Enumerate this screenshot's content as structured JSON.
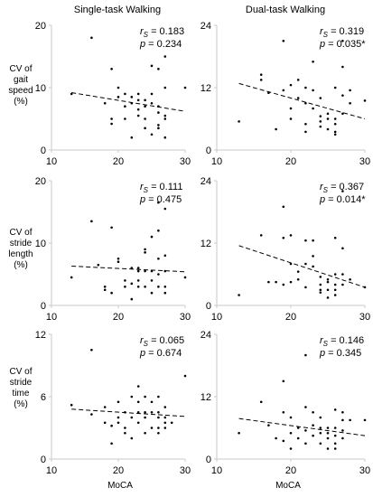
{
  "column_titles": [
    "Single-task Walking",
    "Dual-task Walking"
  ],
  "row_labels": [
    [
      "CV of",
      "gait",
      "speed",
      "(%)"
    ],
    [
      "CV of",
      "stride",
      "length",
      "(%)"
    ],
    [
      "CV of",
      "stride",
      "time",
      "(%)"
    ]
  ],
  "x_axis_label": "MoCA",
  "chart_data": [
    {
      "type": "scatter",
      "panel": "single-task-gait-speed",
      "xlim": [
        10,
        30
      ],
      "ylim": [
        0,
        20
      ],
      "xticks": [
        10,
        20,
        30
      ],
      "yticks": [
        0,
        10,
        20
      ],
      "stat_r": "rS = 0.183",
      "stat_p": "p = 0.234",
      "significant": false,
      "trend": [
        [
          13,
          9.2
        ],
        [
          30,
          6.2
        ]
      ],
      "points": [
        [
          13,
          9.0
        ],
        [
          16,
          18.0
        ],
        [
          18,
          7.5
        ],
        [
          19,
          13.0
        ],
        [
          19,
          5.0
        ],
        [
          19,
          4.2
        ],
        [
          20,
          10.0
        ],
        [
          20,
          8.5
        ],
        [
          21,
          9.0
        ],
        [
          21,
          7.0
        ],
        [
          21,
          5.0
        ],
        [
          22,
          8.5
        ],
        [
          22,
          7.5
        ],
        [
          22,
          2.0
        ],
        [
          23,
          9.0
        ],
        [
          23,
          8.0
        ],
        [
          23,
          6.5
        ],
        [
          23,
          5.5
        ],
        [
          24,
          8.0
        ],
        [
          24,
          7.0
        ],
        [
          24,
          5.0
        ],
        [
          24,
          3.5
        ],
        [
          25,
          13.5
        ],
        [
          25,
          9.0
        ],
        [
          25,
          7.5
        ],
        [
          25,
          2.5
        ],
        [
          26,
          13.0
        ],
        [
          26,
          7.0
        ],
        [
          26,
          6.0
        ],
        [
          26,
          4.0
        ],
        [
          26,
          3.5
        ],
        [
          27,
          15.0
        ],
        [
          27,
          10.0
        ],
        [
          27,
          5.5
        ],
        [
          27,
          5.0
        ],
        [
          27,
          2.0
        ],
        [
          30,
          10.0
        ]
      ]
    },
    {
      "type": "scatter",
      "panel": "dual-task-gait-speed",
      "xlim": [
        10,
        30
      ],
      "ylim": [
        0,
        24
      ],
      "xticks": [
        10,
        20,
        30
      ],
      "yticks": [
        0,
        12,
        24
      ],
      "stat_r": "rS = 0.319",
      "stat_p": "p = 0.035*",
      "significant": true,
      "trend": [
        [
          13,
          12.8
        ],
        [
          30,
          6.0
        ]
      ],
      "points": [
        [
          13,
          5.5
        ],
        [
          16,
          14.5
        ],
        [
          16,
          13.5
        ],
        [
          17,
          11.0
        ],
        [
          18,
          4.0
        ],
        [
          19,
          21.0
        ],
        [
          19,
          11.5
        ],
        [
          20,
          12.5
        ],
        [
          20,
          8.0
        ],
        [
          20,
          6.0
        ],
        [
          21,
          13.5
        ],
        [
          21,
          10.0
        ],
        [
          22,
          12.0
        ],
        [
          22,
          9.0
        ],
        [
          22,
          5.0
        ],
        [
          22,
          3.5
        ],
        [
          23,
          17.0
        ],
        [
          23,
          11.5
        ],
        [
          23,
          8.0
        ],
        [
          24,
          10.0
        ],
        [
          24,
          6.5
        ],
        [
          24,
          5.5
        ],
        [
          24,
          4.5
        ],
        [
          25,
          7.0
        ],
        [
          25,
          6.0
        ],
        [
          25,
          4.0
        ],
        [
          26,
          12.0
        ],
        [
          26,
          6.0
        ],
        [
          26,
          5.0
        ],
        [
          26,
          3.5
        ],
        [
          26,
          3.0
        ],
        [
          27,
          21.0
        ],
        [
          27,
          16.0
        ],
        [
          27,
          10.5
        ],
        [
          27,
          7.0
        ],
        [
          28,
          11.5
        ],
        [
          28,
          9.0
        ],
        [
          30,
          9.5
        ]
      ]
    },
    {
      "type": "scatter",
      "panel": "single-task-stride-length",
      "xlim": [
        10,
        30
      ],
      "ylim": [
        0,
        20
      ],
      "xticks": [
        10,
        20,
        30
      ],
      "yticks": [
        0,
        10,
        20
      ],
      "stat_r": "rS = 0.111",
      "stat_p": "p = 0.475",
      "significant": false,
      "trend": [
        [
          13,
          6.3
        ],
        [
          30,
          5.4
        ]
      ],
      "points": [
        [
          13,
          4.5
        ],
        [
          16,
          13.5
        ],
        [
          17,
          6.5
        ],
        [
          18,
          3.0
        ],
        [
          18,
          2.5
        ],
        [
          19,
          12.5
        ],
        [
          19,
          2.0
        ],
        [
          20,
          7.5
        ],
        [
          20,
          7.0
        ],
        [
          21,
          4.0
        ],
        [
          21,
          3.0
        ],
        [
          22,
          6.0
        ],
        [
          22,
          3.5
        ],
        [
          22,
          1.0
        ],
        [
          23,
          6.0
        ],
        [
          23,
          5.5
        ],
        [
          23,
          4.0
        ],
        [
          23,
          3.0
        ],
        [
          24,
          9.0
        ],
        [
          24,
          8.5
        ],
        [
          24,
          5.5
        ],
        [
          24,
          3.0
        ],
        [
          25,
          11.0
        ],
        [
          25,
          5.5
        ],
        [
          25,
          4.0
        ],
        [
          25,
          2.0
        ],
        [
          26,
          16.5
        ],
        [
          26,
          12.0
        ],
        [
          26,
          7.5
        ],
        [
          26,
          5.0
        ],
        [
          26,
          3.0
        ],
        [
          27,
          15.5
        ],
        [
          27,
          8.0
        ],
        [
          27,
          5.5
        ],
        [
          27,
          3.0
        ],
        [
          27,
          2.0
        ],
        [
          30,
          4.5
        ]
      ]
    },
    {
      "type": "scatter",
      "panel": "dual-task-stride-length",
      "xlim": [
        10,
        30
      ],
      "ylim": [
        0,
        24
      ],
      "xticks": [
        10,
        20,
        30
      ],
      "yticks": [
        0,
        12,
        24
      ],
      "stat_r": "rS = 0.367",
      "stat_p": "p = 0.014*",
      "significant": true,
      "trend": [
        [
          13,
          11.5
        ],
        [
          30,
          3.5
        ]
      ],
      "points": [
        [
          13,
          2.0
        ],
        [
          16,
          13.5
        ],
        [
          17,
          4.5
        ],
        [
          18,
          4.5
        ],
        [
          19,
          19.0
        ],
        [
          19,
          13.0
        ],
        [
          19,
          4.0
        ],
        [
          20,
          13.5
        ],
        [
          20,
          8.0
        ],
        [
          20,
          4.5
        ],
        [
          21,
          6.5
        ],
        [
          21,
          5.0
        ],
        [
          22,
          12.5
        ],
        [
          22,
          8.0
        ],
        [
          22,
          3.5
        ],
        [
          23,
          12.5
        ],
        [
          23,
          9.5
        ],
        [
          23,
          7.5
        ],
        [
          24,
          5.5
        ],
        [
          24,
          4.0
        ],
        [
          24,
          3.0
        ],
        [
          24,
          2.5
        ],
        [
          25,
          5.0
        ],
        [
          25,
          4.5
        ],
        [
          25,
          3.0
        ],
        [
          25,
          1.5
        ],
        [
          26,
          13.0
        ],
        [
          26,
          6.0
        ],
        [
          26,
          4.0
        ],
        [
          26,
          3.0
        ],
        [
          26,
          2.0
        ],
        [
          27,
          22.0
        ],
        [
          27,
          11.0
        ],
        [
          27,
          6.0
        ],
        [
          27,
          4.0
        ],
        [
          28,
          5.0
        ],
        [
          30,
          3.5
        ]
      ]
    },
    {
      "type": "scatter",
      "panel": "single-task-stride-time",
      "xlim": [
        10,
        30
      ],
      "ylim": [
        0,
        12
      ],
      "xticks": [
        10,
        20,
        30
      ],
      "yticks": [
        0,
        6,
        12
      ],
      "stat_r": "rS = 0.065",
      "stat_p": "p = 0.674",
      "significant": false,
      "trend": [
        [
          13,
          4.8
        ],
        [
          30,
          4.1
        ]
      ],
      "points": [
        [
          13,
          5.2
        ],
        [
          16,
          10.5
        ],
        [
          16,
          4.3
        ],
        [
          18,
          5.0
        ],
        [
          18,
          3.5
        ],
        [
          19,
          3.2
        ],
        [
          19,
          1.5
        ],
        [
          20,
          5.5
        ],
        [
          20,
          4.0
        ],
        [
          20,
          3.5
        ],
        [
          21,
          4.5
        ],
        [
          21,
          3.0
        ],
        [
          21,
          2.5
        ],
        [
          22,
          6.0
        ],
        [
          22,
          4.0
        ],
        [
          22,
          2.0
        ],
        [
          23,
          7.0
        ],
        [
          23,
          5.5
        ],
        [
          23,
          4.5
        ],
        [
          23,
          3.5
        ],
        [
          24,
          6.0
        ],
        [
          24,
          4.5
        ],
        [
          24,
          4.0
        ],
        [
          24,
          2.5
        ],
        [
          25,
          5.5
        ],
        [
          25,
          4.5
        ],
        [
          25,
          3.0
        ],
        [
          26,
          6.0
        ],
        [
          26,
          4.5
        ],
        [
          26,
          4.0
        ],
        [
          26,
          3.0
        ],
        [
          26,
          2.5
        ],
        [
          27,
          5.0
        ],
        [
          27,
          4.0
        ],
        [
          27,
          3.5
        ],
        [
          27,
          3.0
        ],
        [
          28,
          3.5
        ],
        [
          30,
          8.0
        ]
      ]
    },
    {
      "type": "scatter",
      "panel": "dual-task-stride-time",
      "xlim": [
        10,
        30
      ],
      "ylim": [
        0,
        24
      ],
      "xticks": [
        10,
        20,
        30
      ],
      "yticks": [
        0,
        12,
        24
      ],
      "stat_r": "rS = 0.146",
      "stat_p": "p = 0.345",
      "significant": false,
      "trend": [
        [
          13,
          7.8
        ],
        [
          30,
          4.5
        ]
      ],
      "points": [
        [
          13,
          5.0
        ],
        [
          16,
          11.0
        ],
        [
          17,
          6.5
        ],
        [
          18,
          4.0
        ],
        [
          19,
          15.0
        ],
        [
          19,
          9.0
        ],
        [
          19,
          3.5
        ],
        [
          20,
          8.0
        ],
        [
          20,
          5.0
        ],
        [
          20,
          2.0
        ],
        [
          21,
          6.0
        ],
        [
          21,
          4.0
        ],
        [
          22,
          20.0
        ],
        [
          22,
          10.0
        ],
        [
          22,
          5.5
        ],
        [
          22,
          3.0
        ],
        [
          23,
          9.0
        ],
        [
          23,
          6.5
        ],
        [
          23,
          4.5
        ],
        [
          24,
          8.0
        ],
        [
          24,
          6.0
        ],
        [
          24,
          5.0
        ],
        [
          24,
          3.0
        ],
        [
          25,
          6.0
        ],
        [
          25,
          5.0
        ],
        [
          25,
          4.0
        ],
        [
          25,
          2.0
        ],
        [
          26,
          9.5
        ],
        [
          26,
          6.0
        ],
        [
          26,
          4.5
        ],
        [
          26,
          3.0
        ],
        [
          26,
          2.0
        ],
        [
          27,
          9.0
        ],
        [
          27,
          7.5
        ],
        [
          27,
          5.5
        ],
        [
          27,
          4.0
        ],
        [
          28,
          7.5
        ],
        [
          30,
          7.5
        ]
      ]
    }
  ]
}
